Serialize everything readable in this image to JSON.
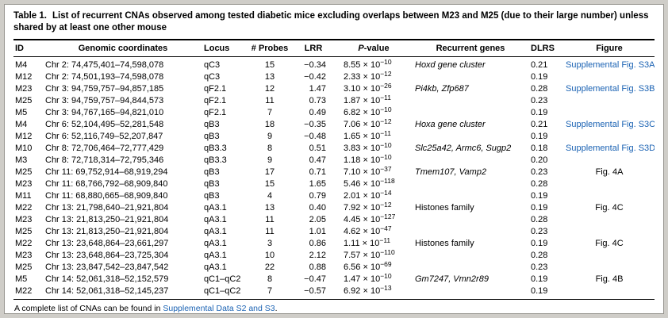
{
  "colors": {
    "link": "#1a62b3",
    "frame_bg": "#cfcdc8",
    "panel_bg": "#ffffff",
    "rule": "#000000"
  },
  "table": {
    "title_label": "Table 1.",
    "title_text": "List of recurrent CNAs observed among tested diabetic mice excluding overlaps between M23 and M25 (due to their large number) unless shared by at least one other mouse",
    "columns": [
      {
        "key": "id",
        "label": "ID"
      },
      {
        "key": "coords",
        "label": "Genomic coordinates"
      },
      {
        "key": "locus",
        "label": "Locus"
      },
      {
        "key": "probes",
        "label": "# Probes"
      },
      {
        "key": "lrr",
        "label": "LRR"
      },
      {
        "key": "pvalue",
        "label": "P-value"
      },
      {
        "key": "genes",
        "label": "Recurrent genes"
      },
      {
        "key": "dlrs",
        "label": "DLRS"
      },
      {
        "key": "figure",
        "label": "Figure"
      }
    ],
    "rows": [
      {
        "id": "M4",
        "coords": "Chr 2: 74,475,401–74,598,078",
        "locus": "qC3",
        "probes": "15",
        "lrr": "−0.34",
        "p_mant": "8.55",
        "p_exp": "−10",
        "genes": "Hoxd gene cluster",
        "genes_italic": true,
        "dlrs": "0.21",
        "figure": "Supplemental Fig. S3A",
        "figure_link": true
      },
      {
        "id": "M12",
        "coords": "Chr 2: 74,501,193–74,598,078",
        "locus": "qC3",
        "probes": "13",
        "lrr": "−0.42",
        "p_mant": "2.33",
        "p_exp": "−12",
        "genes": "",
        "genes_italic": false,
        "dlrs": "0.19",
        "figure": "",
        "figure_link": false
      },
      {
        "id": "M23",
        "coords": "Chr 3: 94,759,757–94,857,185",
        "locus": "qF2.1",
        "probes": "12",
        "lrr": "1.47",
        "p_mant": "3.10",
        "p_exp": "−26",
        "genes": "Pi4kb, Zfp687",
        "genes_italic": true,
        "dlrs": "0.28",
        "figure": "Supplemental Fig. S3B",
        "figure_link": true
      },
      {
        "id": "M25",
        "coords": "Chr 3: 94,759,757–94,844,573",
        "locus": "qF2.1",
        "probes": "11",
        "lrr": "0.73",
        "p_mant": "1.87",
        "p_exp": "−11",
        "genes": "",
        "genes_italic": false,
        "dlrs": "0.23",
        "figure": "",
        "figure_link": false
      },
      {
        "id": "M5",
        "coords": "Chr 3: 94,767,165–94,821,010",
        "locus": "qF2.1",
        "probes": "7",
        "lrr": "0.49",
        "p_mant": "6.82",
        "p_exp": "−10",
        "genes": "",
        "genes_italic": false,
        "dlrs": "0.19",
        "figure": "",
        "figure_link": false
      },
      {
        "id": "M4",
        "coords": "Chr 6: 52,104,495–52,281,548",
        "locus": "qB3",
        "probes": "18",
        "lrr": "−0.35",
        "p_mant": "7.06",
        "p_exp": "−12",
        "genes": "Hoxa gene cluster",
        "genes_italic": true,
        "dlrs": "0.21",
        "figure": "Supplemental Fig. S3C",
        "figure_link": true
      },
      {
        "id": "M12",
        "coords": "Chr 6: 52,116,749–52,207,847",
        "locus": "qB3",
        "probes": "9",
        "lrr": "−0.48",
        "p_mant": "1.65",
        "p_exp": "−11",
        "genes": "",
        "genes_italic": false,
        "dlrs": "0.19",
        "figure": "",
        "figure_link": false
      },
      {
        "id": "M10",
        "coords": "Chr 8: 72,706,464–72,777,429",
        "locus": "qB3.3",
        "probes": "8",
        "lrr": "0.51",
        "p_mant": "3.83",
        "p_exp": "−10",
        "genes": "Slc25a42, Armc6, Sugp2",
        "genes_italic": true,
        "dlrs": "0.18",
        "figure": "Supplemental Fig. S3D",
        "figure_link": true
      },
      {
        "id": "M3",
        "coords": "Chr 8: 72,718,314–72,795,346",
        "locus": "qB3.3",
        "probes": "9",
        "lrr": "0.47",
        "p_mant": "1.18",
        "p_exp": "−10",
        "genes": "",
        "genes_italic": false,
        "dlrs": "0.20",
        "figure": "",
        "figure_link": false
      },
      {
        "id": "M25",
        "coords": "Chr 11: 69,752,914–68,919,294",
        "locus": "qB3",
        "probes": "17",
        "lrr": "0.71",
        "p_mant": "7.10",
        "p_exp": "−37",
        "genes": "Tmem107, Vamp2",
        "genes_italic": true,
        "dlrs": "0.23",
        "figure": "Fig. 4A",
        "figure_link": false
      },
      {
        "id": "M23",
        "coords": "Chr 11: 68,766,792–68,909,840",
        "locus": "qB3",
        "probes": "15",
        "lrr": "1.65",
        "p_mant": "5.46",
        "p_exp": "−118",
        "genes": "",
        "genes_italic": false,
        "dlrs": "0.28",
        "figure": "",
        "figure_link": false
      },
      {
        "id": "M11",
        "coords": "Chr 11: 68,880,665–68,909,840",
        "locus": "qB3",
        "probes": "4",
        "lrr": "0.79",
        "p_mant": "2.01",
        "p_exp": "−14",
        "genes": "",
        "genes_italic": false,
        "dlrs": "0.19",
        "figure": "",
        "figure_link": false
      },
      {
        "id": "M22",
        "coords": "Chr 13: 21,798,640–21,921,804",
        "locus": "qA3.1",
        "probes": "13",
        "lrr": "0.40",
        "p_mant": "7.92",
        "p_exp": "−12",
        "genes": "Histones family",
        "genes_italic": false,
        "dlrs": "0.19",
        "figure": "Fig. 4C",
        "figure_link": false
      },
      {
        "id": "M23",
        "coords": "Chr 13: 21,813,250–21,921,804",
        "locus": "qA3.1",
        "probes": "11",
        "lrr": "2.05",
        "p_mant": "4.45",
        "p_exp": "−127",
        "genes": "",
        "genes_italic": false,
        "dlrs": "0.28",
        "figure": "",
        "figure_link": false
      },
      {
        "id": "M25",
        "coords": "Chr 13: 21,813,250–21,921,804",
        "locus": "qA3.1",
        "probes": "11",
        "lrr": "1.01",
        "p_mant": "4.62",
        "p_exp": "−47",
        "genes": "",
        "genes_italic": false,
        "dlrs": "0.23",
        "figure": "",
        "figure_link": false
      },
      {
        "id": "M22",
        "coords": "Chr 13: 23,648,864–23,661,297",
        "locus": "qA3.1",
        "probes": "3",
        "lrr": "0.86",
        "p_mant": "1.11",
        "p_exp": "−11",
        "genes": "Histones family",
        "genes_italic": false,
        "dlrs": "0.19",
        "figure": "Fig. 4C",
        "figure_link": false
      },
      {
        "id": "M23",
        "coords": "Chr 13: 23,648,864–23,725,304",
        "locus": "qA3.1",
        "probes": "10",
        "lrr": "2.12",
        "p_mant": "7.57",
        "p_exp": "−110",
        "genes": "",
        "genes_italic": false,
        "dlrs": "0.28",
        "figure": "",
        "figure_link": false
      },
      {
        "id": "M25",
        "coords": "Chr 13: 23,847,542–23,847,542",
        "locus": "qA3.1",
        "probes": "22",
        "lrr": "0.88",
        "p_mant": "6.56",
        "p_exp": "−69",
        "genes": "",
        "genes_italic": false,
        "dlrs": "0.23",
        "figure": "",
        "figure_link": false
      },
      {
        "id": "M5",
        "coords": "Chr 14: 52,061,318–52,152,579",
        "locus": "qC1–qC2",
        "probes": "8",
        "lrr": "−0.47",
        "p_mant": "1.47",
        "p_exp": "−10",
        "genes": "Gm7247, Vmn2r89",
        "genes_italic": true,
        "dlrs": "0.19",
        "figure": "Fig. 4B",
        "figure_link": false
      },
      {
        "id": "M22",
        "coords": "Chr 14: 52,061,318–52,145,237",
        "locus": "qC1–qC2",
        "probes": "7",
        "lrr": "−0.57",
        "p_mant": "6.92",
        "p_exp": "−13",
        "genes": "",
        "genes_italic": false,
        "dlrs": "0.19",
        "figure": "",
        "figure_link": false
      }
    ],
    "footnote": {
      "prefix": "A complete list of CNAs can be found in ",
      "link": "Supplemental Data S2 and S3",
      "suffix": "."
    }
  }
}
